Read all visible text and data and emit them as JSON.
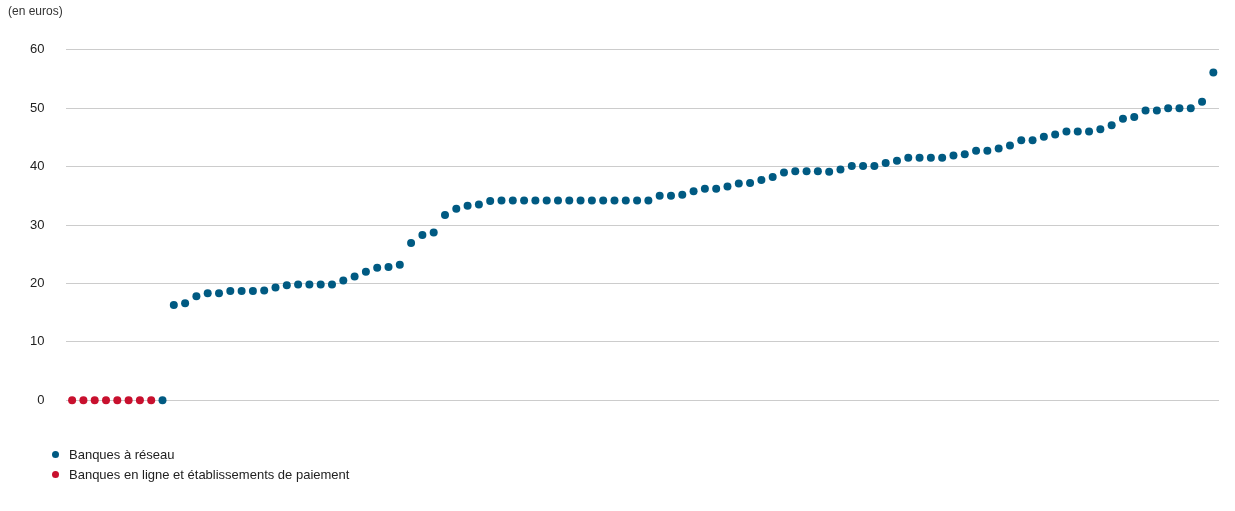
{
  "chart_data": {
    "type": "scatter",
    "ylabel": "(en euros)",
    "categories": [
      null,
      null,
      null,
      null,
      null,
      null,
      null,
      null,
      null,
      null,
      null,
      null,
      null,
      null,
      null,
      null,
      null,
      null,
      null,
      null,
      null,
      null,
      null,
      null,
      null,
      null,
      null,
      null,
      null,
      null,
      null,
      null,
      null,
      null,
      null,
      null,
      null,
      null,
      null,
      null,
      null,
      null,
      null,
      null,
      null,
      null,
      null,
      null,
      null,
      null,
      null,
      null,
      null,
      null,
      null,
      null,
      null,
      null,
      null,
      null,
      null,
      null,
      null,
      null,
      null,
      null,
      null,
      null,
      null,
      null,
      null,
      null,
      null,
      null,
      null,
      null,
      null,
      null,
      null,
      null,
      null,
      null,
      null,
      null,
      null,
      null,
      null,
      null,
      null,
      null,
      null,
      null,
      null,
      null,
      null,
      null,
      null,
      null,
      null,
      null,
      null,
      null
    ],
    "series": [
      {
        "name": "Banques à réseau",
        "color": "#005a82",
        "values": [
          null,
          null,
          null,
          null,
          null,
          null,
          null,
          null,
          0,
          16.3,
          16.6,
          17.8,
          18.3,
          18.3,
          18.7,
          18.7,
          18.7,
          18.8,
          19.3,
          19.7,
          19.8,
          19.8,
          19.8,
          19.8,
          20.5,
          21.2,
          22.0,
          22.7,
          22.8,
          23.2,
          26.9,
          28.3,
          28.7,
          31.7,
          32.8,
          33.3,
          33.5,
          34.1,
          34.2,
          34.2,
          34.2,
          34.2,
          34.2,
          34.2,
          34.2,
          34.2,
          34.2,
          34.2,
          34.2,
          34.2,
          34.2,
          34.2,
          35.0,
          35.0,
          35.2,
          35.8,
          36.2,
          36.2,
          36.6,
          37.1,
          37.2,
          37.7,
          38.2,
          39.0,
          39.2,
          39.2,
          39.2,
          39.1,
          39.5,
          40.1,
          40.1,
          40.1,
          40.6,
          41.0,
          41.5,
          41.5,
          41.5,
          41.5,
          41.9,
          42.1,
          42.7,
          42.7,
          43.1,
          43.6,
          44.5,
          44.5,
          45.1,
          45.5,
          46.0,
          46.0,
          46.0,
          46.4,
          47.1,
          48.2,
          48.5,
          49.6,
          49.6,
          50.0,
          50.0,
          50.0,
          51.1,
          56.1
        ]
      },
      {
        "name": "Banques en ligne et établissements de paiement",
        "color": "#c8102e",
        "values": [
          0,
          0,
          0,
          0,
          0,
          0,
          0,
          0,
          null,
          null,
          null,
          null,
          null,
          null,
          null,
          null,
          null,
          null,
          null,
          null,
          null,
          null,
          null,
          null,
          null,
          null,
          null,
          null,
          null,
          null,
          null,
          null,
          null,
          null,
          null,
          null,
          null,
          null,
          null,
          null,
          null,
          null,
          null,
          null,
          null,
          null,
          null,
          null,
          null,
          null,
          null,
          null,
          null,
          null,
          null,
          null,
          null,
          null,
          null,
          null,
          null,
          null,
          null,
          null,
          null,
          null,
          null,
          null,
          null,
          null,
          null,
          null,
          null,
          null,
          null,
          null,
          null,
          null,
          null,
          null,
          null,
          null,
          null,
          null,
          null,
          null,
          null,
          null,
          null,
          null,
          null,
          null,
          null,
          null,
          null,
          null,
          null,
          null,
          null,
          null,
          null,
          null
        ]
      }
    ],
    "ylim": [
      0,
      60
    ],
    "yticks": [
      0,
      10,
      20,
      30,
      40,
      50,
      60
    ],
    "grid": "y",
    "legend": "bottom left",
    "marker": "circle"
  }
}
